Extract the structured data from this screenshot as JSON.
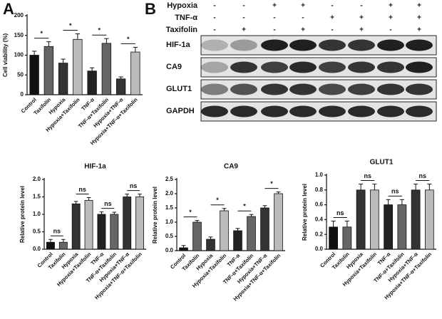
{
  "chart_data": [
    {
      "type": "bar",
      "panel_label": "A",
      "ylabel": "Cell viability (%)",
      "categories": [
        "Control",
        "Taxifolin",
        "Hypoxia",
        "Hypoxia+Taxifolin",
        "TNF-α",
        "TNF-α+Taxifolin",
        "Hypoxia+TNF-α",
        "Hypoxia+TNF-α+Taxifolin"
      ],
      "values": [
        100,
        122,
        80,
        140,
        60,
        130,
        40,
        108
      ],
      "errors": [
        10,
        12,
        10,
        14,
        8,
        12,
        5,
        12
      ],
      "colors": [
        "#111111",
        "#666666",
        "#333333",
        "#bbbbbb",
        "#222222",
        "#666666",
        "#333333",
        "#bbbbbb"
      ],
      "ylim": [
        0,
        200
      ],
      "yticks": [
        0,
        50,
        100,
        150,
        200
      ],
      "comparisons": [
        {
          "categories": [
            "Control",
            "Taxifolin"
          ],
          "label": "*"
        },
        {
          "categories": [
            "Hypoxia",
            "Hypoxia+Taxifolin"
          ],
          "label": "*"
        },
        {
          "categories": [
            "TNF-α",
            "TNF-α+Taxifolin"
          ],
          "label": "*"
        },
        {
          "categories": [
            "Hypoxia+TNF-α",
            "Hypoxia+TNF-α+Taxifolin"
          ],
          "label": "*"
        }
      ]
    },
    {
      "type": "bar",
      "title": "HIF-1a",
      "ylabel": "Relative protein level",
      "categories": [
        "Control",
        "Taxifolin",
        "Hypoxia",
        "Hypoxia+Taxifolin",
        "TNF-α",
        "TNF-α+Taxifolin",
        "Hypoxia+TNF-α",
        "Hypoxia+TNF-α+Taxifolin"
      ],
      "values": [
        0.2,
        0.2,
        1.3,
        1.4,
        1.0,
        1.0,
        1.5,
        1.5
      ],
      "errors": [
        0.08,
        0.08,
        0.07,
        0.08,
        0.07,
        0.06,
        0.08,
        0.08
      ],
      "colors": [
        "#111111",
        "#666666",
        "#333333",
        "#bbbbbb",
        "#222222",
        "#666666",
        "#333333",
        "#bbbbbb"
      ],
      "ylim": [
        0,
        2.0
      ],
      "yticks": [
        {
          "value": 0,
          "label": "0.0"
        },
        0.5,
        {
          "value": 1,
          "label": "1.0"
        },
        1.5,
        {
          "value": 2,
          "label": "2.0"
        }
      ],
      "comparisons": [
        {
          "categories": [
            "Control",
            "Taxifolin"
          ],
          "label": "ns"
        },
        {
          "categories": [
            "Hypoxia",
            "Hypoxia+Taxifolin"
          ],
          "label": "ns"
        },
        {
          "categories": [
            "TNF-α",
            "TNF-α+Taxifolin"
          ],
          "label": "ns"
        },
        {
          "categories": [
            "Hypoxia+TNF-α",
            "Hypoxia+TNF-α+Taxifolin"
          ],
          "label": "ns"
        }
      ]
    },
    {
      "type": "bar",
      "title": "CA9",
      "ylabel": "Relative protein level",
      "categories": [
        "Control",
        "Taxifolin",
        "Hypoxia",
        "Hypoxia+Taxifolin",
        "TNF-α",
        "TNF-α+Taxifolin",
        "Hypoxia+TNF-α",
        "Hypoxia+TNF-α+Taxifolin"
      ],
      "values": [
        0.1,
        1.0,
        0.4,
        1.4,
        0.7,
        1.2,
        1.5,
        2.0
      ],
      "errors": [
        0.08,
        0.06,
        0.08,
        0.08,
        0.08,
        0.07,
        0.08,
        0.06
      ],
      "colors": [
        "#111111",
        "#666666",
        "#333333",
        "#bbbbbb",
        "#222222",
        "#666666",
        "#333333",
        "#bbbbbb"
      ],
      "ylim": [
        0,
        2.5
      ],
      "yticks": [
        {
          "value": 0,
          "label": "0.0"
        },
        0.5,
        {
          "value": 1,
          "label": "1.0"
        },
        1.5,
        {
          "value": 2,
          "label": "2.0"
        },
        2.5
      ],
      "comparisons": [
        {
          "categories": [
            "Control",
            "Taxifolin"
          ],
          "label": "*"
        },
        {
          "categories": [
            "Hypoxia",
            "Hypoxia+Taxifolin"
          ],
          "label": "*"
        },
        {
          "categories": [
            "TNF-α",
            "TNF-α+Taxifolin"
          ],
          "label": "*"
        },
        {
          "categories": [
            "Hypoxia+TNF-α",
            "Hypoxia+TNF-α+Taxifolin"
          ],
          "label": "*"
        }
      ]
    },
    {
      "type": "bar",
      "title": "GLUT1",
      "ylabel": "Relative protein level",
      "categories": [
        "Control",
        "Taxifolin",
        "Hypoxia",
        "Hypoxia+Taxifolin",
        "TNF-α",
        "TNF-α+Taxifolin",
        "Hypoxia+TNF-α",
        "Hypoxia+TNF-α+Taxifolin"
      ],
      "values": [
        0.3,
        0.3,
        0.8,
        0.8,
        0.6,
        0.6,
        0.8,
        0.8
      ],
      "errors": [
        0.08,
        0.08,
        0.08,
        0.08,
        0.07,
        0.07,
        0.08,
        0.08
      ],
      "colors": [
        "#111111",
        "#666666",
        "#333333",
        "#bbbbbb",
        "#222222",
        "#666666",
        "#333333",
        "#bbbbbb"
      ],
      "ylim": [
        0,
        1.0
      ],
      "yticks": [
        {
          "value": 0,
          "label": "0.0"
        },
        0.2,
        0.4,
        0.6,
        0.8,
        {
          "value": 1,
          "label": "1.0"
        }
      ],
      "comparisons": [
        {
          "categories": [
            "Control",
            "Taxifolin"
          ],
          "label": "ns"
        },
        {
          "categories": [
            "Hypoxia",
            "Hypoxia+Taxifolin"
          ],
          "label": "ns"
        },
        {
          "categories": [
            "TNF-α",
            "TNF-α+Taxifolin"
          ],
          "label": "ns"
        },
        {
          "categories": [
            "Hypoxia+TNF-α",
            "Hypoxia+TNF-α+Taxifolin"
          ],
          "label": "ns"
        }
      ]
    }
  ],
  "blot": {
    "panel_label": "B",
    "conditions": [
      {
        "name": "Hypoxia",
        "signs": [
          "-",
          "-",
          "+",
          "+",
          "-",
          "-",
          "+",
          "+"
        ]
      },
      {
        "name": "TNF-α",
        "signs": [
          "-",
          "-",
          "-",
          "-",
          "+",
          "+",
          "+",
          "+"
        ]
      },
      {
        "name": "Taxifolin",
        "signs": [
          "-",
          "+",
          "-",
          "+",
          "-",
          "+",
          "-",
          "+"
        ]
      }
    ],
    "bands": [
      "HIF-1a",
      "CA9",
      "GLUT1",
      "GAPDH"
    ]
  }
}
